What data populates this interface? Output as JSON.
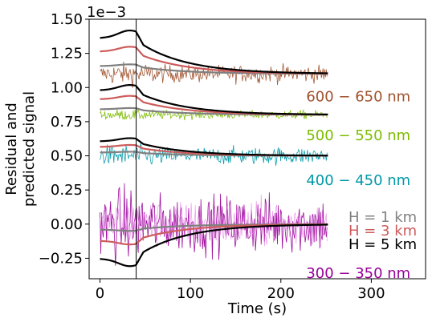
{
  "chart_data": {
    "type": "line",
    "title": "",
    "xlabel": "Time (s)",
    "ylabel": [
      "Residual and",
      "predicted signal"
    ],
    "offset_text": "1e−3",
    "xlim": [
      -12,
      360
    ],
    "ylim": [
      -0.4,
      1.5
    ],
    "xticks": [
      0,
      100,
      200,
      300
    ],
    "yticks": [
      -0.25,
      0.0,
      0.25,
      0.5,
      0.75,
      1.0,
      1.25,
      1.5
    ],
    "ytick_labels": [
      "−0.25",
      "0.00",
      "0.25",
      "0.50",
      "0.75",
      "1.00",
      "1.25",
      "1.50"
    ],
    "marker_line_x": 40,
    "bands": [
      {
        "label": "600 − 650 nm",
        "label_x": 228,
        "label_y": 0.935,
        "color": "#a0522d",
        "baseline": 1.1,
        "noise_amp": 0.06,
        "lw": 0.8,
        "models": {
          "H = 1 km": 0.07,
          "H = 3 km": 0.2,
          "H = 5 km": 0.32
        }
      },
      {
        "label": "500 − 550 nm",
        "label_x": 228,
        "label_y": 0.65,
        "color": "#7cbc00",
        "baseline": 0.8,
        "noise_amp": 0.03,
        "lw": 0.8,
        "models": {
          "H = 1 km": 0.05,
          "H = 3 km": 0.14,
          "H = 5 km": 0.22
        }
      },
      {
        "label": "400 − 450 nm",
        "label_x": 228,
        "label_y": 0.32,
        "color": "#0099a8",
        "baseline": 0.5,
        "noise_amp": 0.06,
        "lw": 0.8,
        "models": {
          "H = 1 km": 0.03,
          "H = 3 km": 0.08,
          "H = 5 km": 0.13
        }
      },
      {
        "label": "300 − 350 nm",
        "label_x": 228,
        "label_y": -0.36,
        "color": "#990099",
        "baseline": 0.0,
        "noise_amp": 0.2,
        "lw": 0.8,
        "models": {
          "H = 1 km": -0.05,
          "H = 3 km": -0.15,
          "H = 5 km": -0.31
        }
      }
    ],
    "legend": [
      {
        "label": "H = 1 km",
        "color": "#808080"
      },
      {
        "label": "H = 3 km",
        "color": "#cd5c5c"
      },
      {
        "label": "H = 5 km",
        "color": "#000000"
      }
    ],
    "legend_position": "lower-right"
  }
}
